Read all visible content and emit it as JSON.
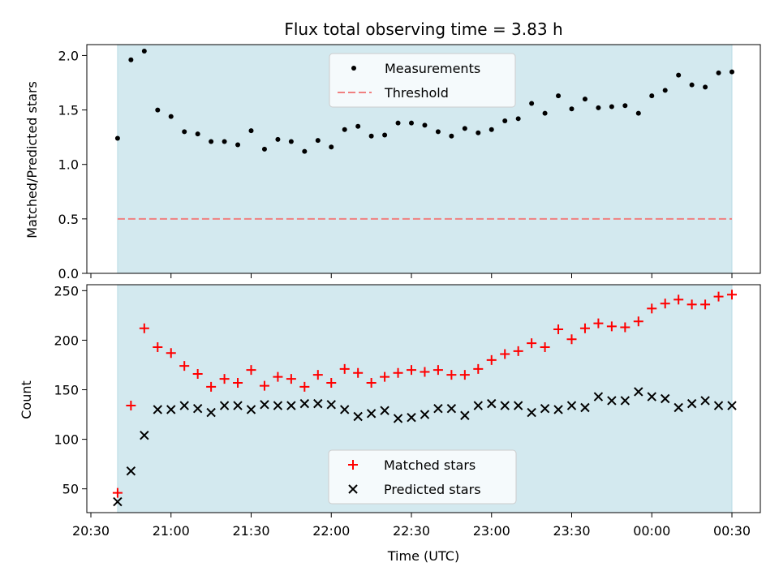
{
  "chart_data": [
    {
      "type": "scatter",
      "title": "Flux total observing time = 3.83 h",
      "ylabel": "Matched/Predicted stars",
      "xlabel": "",
      "ylim": [
        0,
        2.1
      ],
      "yticks": [
        "0.0",
        "0.5",
        "1.0",
        "1.5",
        "2.0"
      ],
      "shaded_span": [
        "20:40",
        "00:30"
      ],
      "shade_color": "#d3e9ef",
      "legend_position": "upper center",
      "x": [
        "20:40",
        "20:45",
        "20:50",
        "20:55",
        "21:00",
        "21:05",
        "21:10",
        "21:15",
        "21:20",
        "21:25",
        "21:30",
        "21:35",
        "21:40",
        "21:45",
        "21:50",
        "21:55",
        "22:00",
        "22:05",
        "22:10",
        "22:15",
        "22:20",
        "22:25",
        "22:30",
        "22:35",
        "22:40",
        "22:45",
        "22:50",
        "22:55",
        "23:00",
        "23:05",
        "23:10",
        "23:15",
        "23:20",
        "23:25",
        "23:30",
        "23:35",
        "23:40",
        "23:45",
        "23:50",
        "23:55",
        "00:00",
        "00:05",
        "00:10",
        "00:15",
        "00:20",
        "00:25",
        "00:30"
      ],
      "series": [
        {
          "name": "Measurements",
          "marker": "dot",
          "color": "#000000",
          "values": [
            1.24,
            1.96,
            2.04,
            1.5,
            1.44,
            1.3,
            1.28,
            1.21,
            1.21,
            1.18,
            1.31,
            1.14,
            1.23,
            1.21,
            1.12,
            1.22,
            1.16,
            1.32,
            1.35,
            1.26,
            1.27,
            1.38,
            1.38,
            1.36,
            1.3,
            1.26,
            1.33,
            1.29,
            1.32,
            1.4,
            1.42,
            1.56,
            1.47,
            1.63,
            1.51,
            1.6,
            1.52,
            1.53,
            1.54,
            1.47,
            1.63,
            1.68,
            1.82,
            1.73,
            1.71,
            1.84,
            1.85
          ]
        },
        {
          "name": "Threshold",
          "marker": "dashed-line",
          "color": "#f08080",
          "values": [
            0.5,
            0.5
          ]
        }
      ]
    },
    {
      "type": "scatter",
      "title": "",
      "ylabel": "Count",
      "xlabel": "Time (UTC)",
      "ylim": [
        26,
        256
      ],
      "yticks": [
        "50",
        "100",
        "150",
        "200",
        "250"
      ],
      "xticks": [
        "20:30",
        "21:00",
        "21:30",
        "22:00",
        "22:30",
        "23:00",
        "23:30",
        "00:00",
        "00:30"
      ],
      "shaded_span": [
        "20:40",
        "00:30"
      ],
      "shade_color": "#d3e9ef",
      "legend_position": "lower center",
      "x": [
        "20:40",
        "20:45",
        "20:50",
        "20:55",
        "21:00",
        "21:05",
        "21:10",
        "21:15",
        "21:20",
        "21:25",
        "21:30",
        "21:35",
        "21:40",
        "21:45",
        "21:50",
        "21:55",
        "22:00",
        "22:05",
        "22:10",
        "22:15",
        "22:20",
        "22:25",
        "22:30",
        "22:35",
        "22:40",
        "22:45",
        "22:50",
        "22:55",
        "23:00",
        "23:05",
        "23:10",
        "23:15",
        "23:20",
        "23:25",
        "23:30",
        "23:35",
        "23:40",
        "23:45",
        "23:50",
        "23:55",
        "00:00",
        "00:05",
        "00:10",
        "00:15",
        "00:20",
        "00:25",
        "00:30"
      ],
      "series": [
        {
          "name": "Matched stars",
          "marker": "plus",
          "color": "#ff0000",
          "values": [
            46,
            134,
            212,
            193,
            187,
            174,
            166,
            153,
            161,
            157,
            170,
            154,
            163,
            161,
            153,
            165,
            157,
            171,
            167,
            157,
            163,
            167,
            170,
            168,
            170,
            165,
            165,
            171,
            180,
            186,
            189,
            197,
            193,
            211,
            201,
            212,
            217,
            214,
            213,
            219,
            232,
            237,
            241,
            236,
            236,
            244,
            246
          ]
        },
        {
          "name": "Predicted stars",
          "marker": "x",
          "color": "#000000",
          "values": [
            37,
            68,
            104,
            130,
            130,
            134,
            131,
            127,
            134,
            134,
            130,
            135,
            134,
            134,
            136,
            136,
            135,
            130,
            123,
            126,
            129,
            121,
            122,
            125,
            131,
            131,
            124,
            134,
            136,
            134,
            134,
            127,
            131,
            130,
            134,
            132,
            143,
            139,
            139,
            148,
            143,
            141,
            132,
            136,
            139,
            134,
            134
          ]
        }
      ]
    }
  ]
}
